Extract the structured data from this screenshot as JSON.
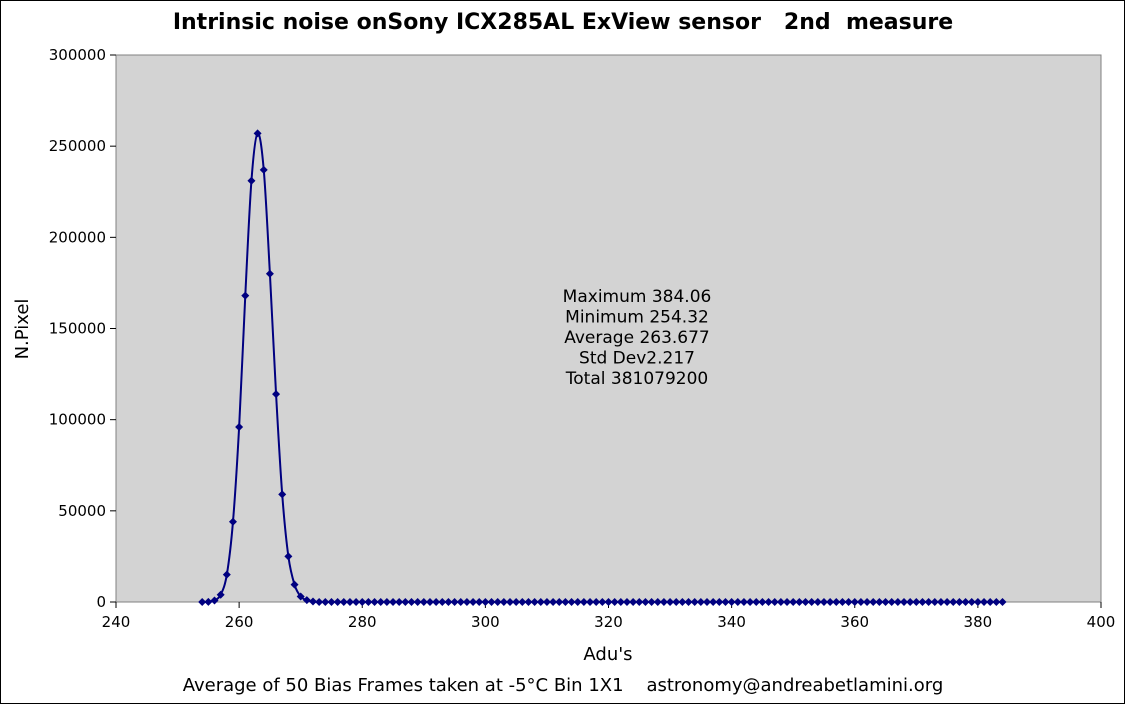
{
  "chart_data": {
    "type": "scatter",
    "title": "Intrinsic noise onSony ICX285AL ExView sensor   2nd  measure",
    "xlabel": "Adu's",
    "ylabel": "N.Pixel",
    "xlim": [
      240,
      400
    ],
    "ylim": [
      0,
      300000
    ],
    "x_ticks": [
      240,
      260,
      280,
      300,
      320,
      340,
      360,
      380,
      400
    ],
    "y_ticks": [
      0,
      50000,
      100000,
      150000,
      200000,
      250000,
      300000
    ],
    "x_tick_labels": [
      "240",
      "260",
      "280",
      "300",
      "320",
      "340",
      "360",
      "380",
      "400"
    ],
    "y_tick_labels": [
      "0",
      "50000",
      "100000",
      "150000",
      "200000",
      "250000",
      "300000"
    ],
    "grid": false,
    "plot_background": "#d3d3d3",
    "series_color": "#000080",
    "series": [
      {
        "marker": "diamond",
        "line": "smoothed",
        "points": [
          [
            254,
            0
          ],
          [
            255,
            100
          ],
          [
            256,
            800
          ],
          [
            257,
            4000
          ],
          [
            258,
            15000
          ],
          [
            259,
            44000
          ],
          [
            260,
            96000
          ],
          [
            261,
            168000
          ],
          [
            262,
            231000
          ],
          [
            263,
            257000
          ],
          [
            264,
            237000
          ],
          [
            265,
            180000
          ],
          [
            266,
            114000
          ],
          [
            267,
            59000
          ],
          [
            268,
            25000
          ],
          [
            269,
            9500
          ],
          [
            270,
            3000
          ],
          [
            271,
            1000
          ],
          [
            272,
            300
          ]
        ],
        "tail_x_range": [
          273,
          384
        ],
        "tail_value": 0
      }
    ],
    "annotations": [
      "Maximum 384.06",
      "Minimum 254.32",
      "Average 263.677",
      " Std Dev2.217",
      "Total 381079200"
    ],
    "footer": "Average of 50 Bias Frames taken at -5°C Bin 1X1    astronomy@andreabetlamini.org"
  }
}
